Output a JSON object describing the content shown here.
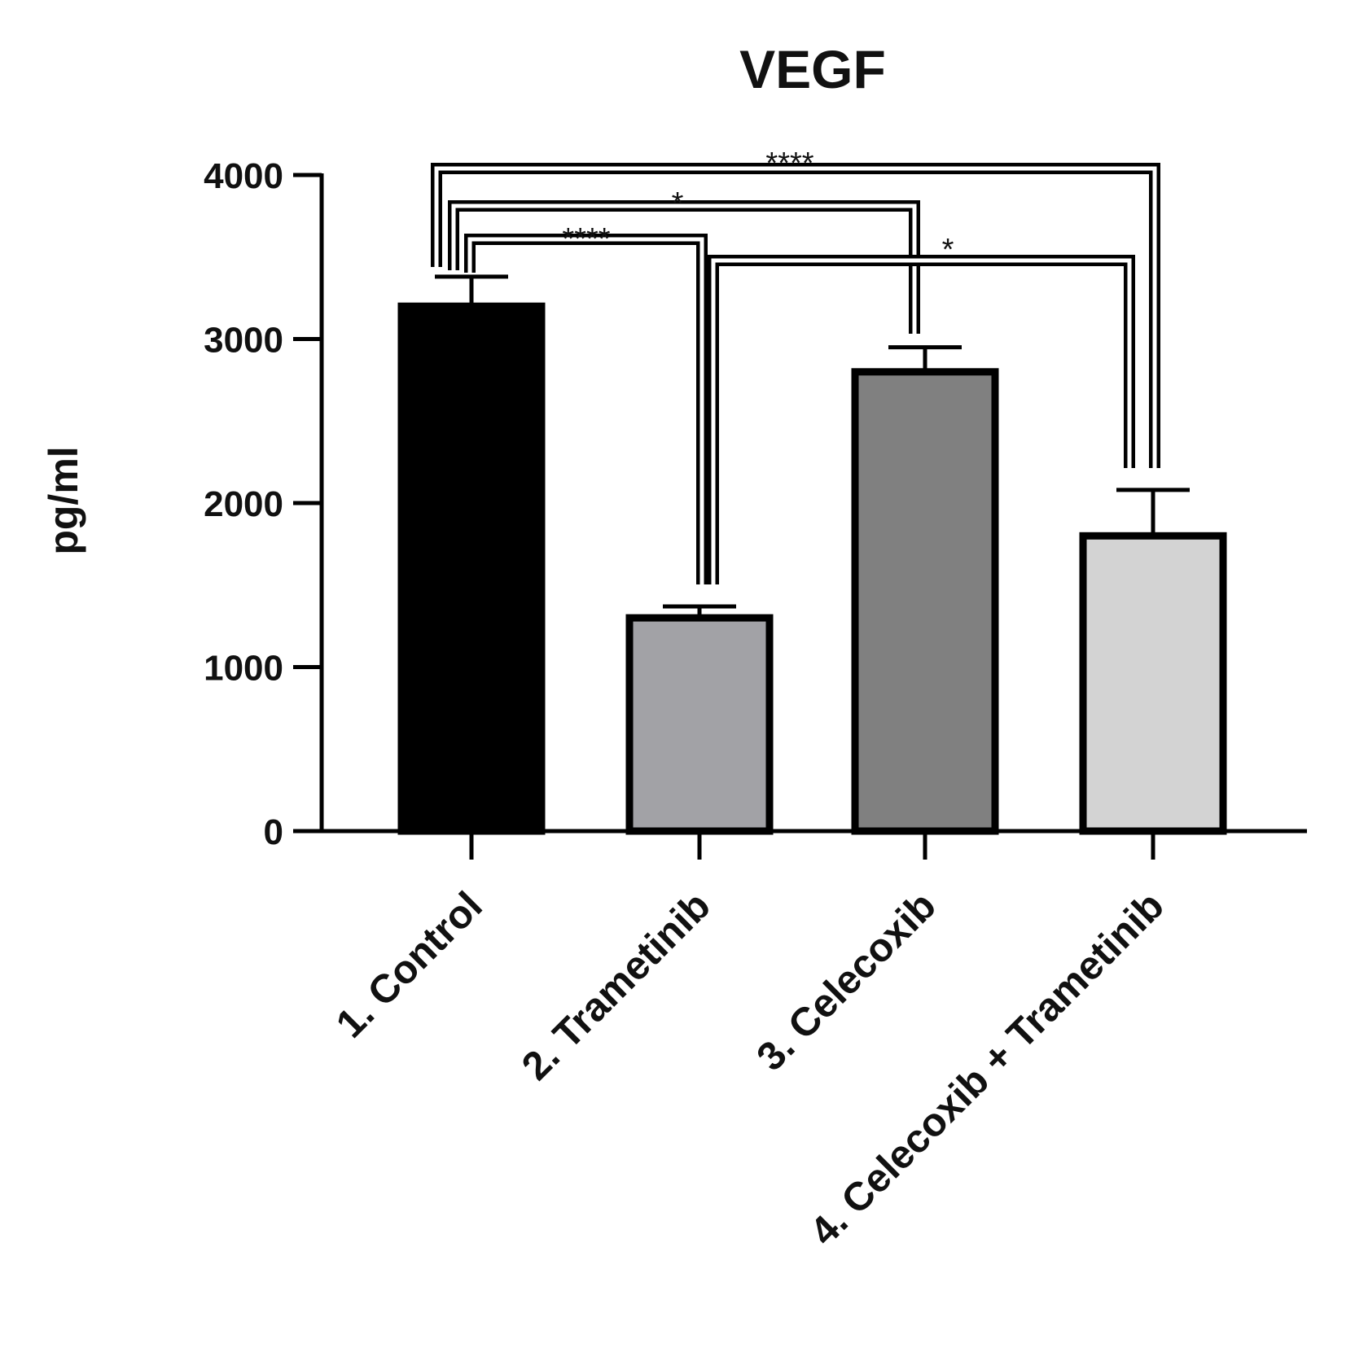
{
  "chart_data": {
    "type": "bar",
    "title": "VEGF",
    "xlabel": "",
    "ylabel": "pg/ml",
    "ylim": [
      0,
      4000
    ],
    "yticks": [
      0,
      1000,
      2000,
      3000,
      4000
    ],
    "grid": false,
    "categories": [
      "1. Control",
      "2. Trametinib",
      "3. Celecoxib",
      "4. Celecoxib + Trametinib"
    ],
    "values": [
      3200,
      1300,
      2800,
      1800
    ],
    "errors": [
      180,
      70,
      150,
      280
    ],
    "bar_colors": [
      "#000000",
      "#a2a2a6",
      "#808080",
      "#d3d3d3"
    ],
    "significance": [
      {
        "from": 0,
        "to": 1,
        "label": "****"
      },
      {
        "from": 0,
        "to": 2,
        "label": "*"
      },
      {
        "from": 0,
        "to": 3,
        "label": "****"
      },
      {
        "from": 1,
        "to": 3,
        "label": "*"
      }
    ]
  }
}
